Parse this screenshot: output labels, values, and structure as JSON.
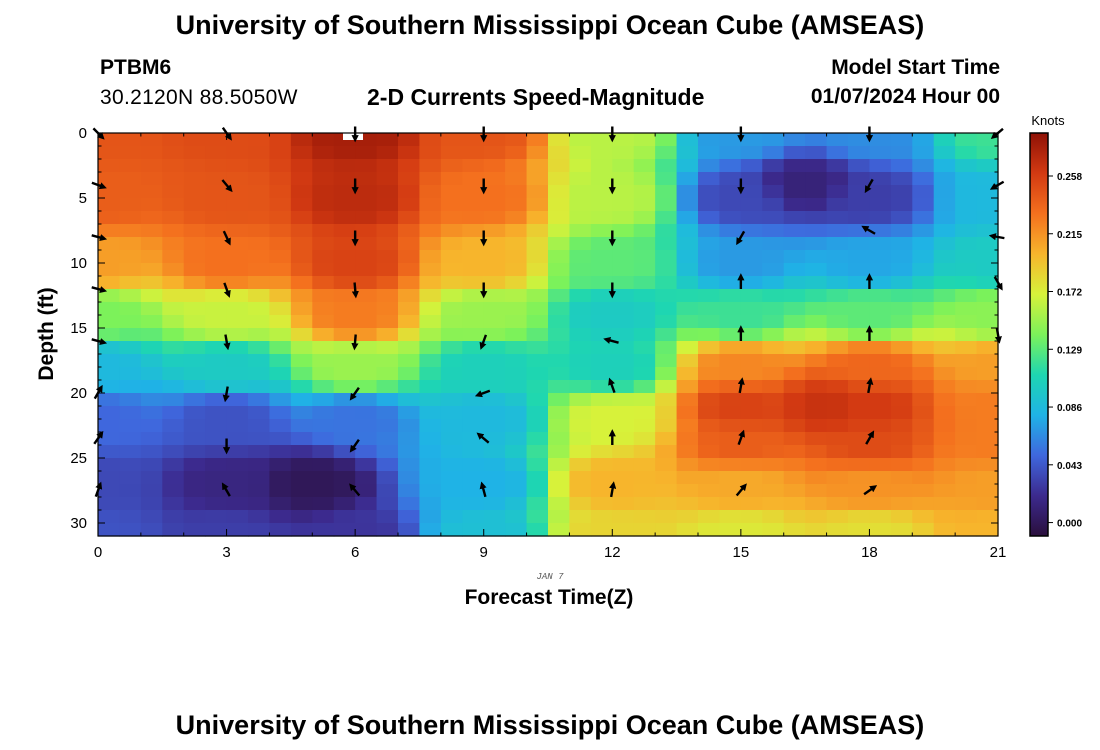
{
  "header": {
    "title": "University of Southern Mississippi Ocean Cube (AMSEAS)",
    "station": "PTBM6",
    "coordinates": "30.2120N  88.5050W",
    "subtitle": "2-D Currents Speed-Magnitude",
    "model_start_label": "Model Start Time",
    "model_start_value": "01/07/2024 Hour 00"
  },
  "footer": {
    "title": "University of Southern Mississippi Ocean Cube (AMSEAS)"
  },
  "chart_data": {
    "type": "heatmap",
    "title": "2-D Currents Speed-Magnitude",
    "xlabel": "Forecast Time(Z)",
    "ylabel": "Depth (ft)",
    "date_label": "JAN 7",
    "x_range": [
      0,
      21
    ],
    "y_range": [
      0,
      31
    ],
    "x_ticks": [
      0,
      3,
      6,
      9,
      12,
      15,
      18,
      21
    ],
    "y_ticks": [
      0,
      5,
      10,
      15,
      20,
      25,
      30
    ],
    "colorbar": {
      "label": "Knots",
      "min": -0.01,
      "max": 0.29,
      "ticks": [
        "0.000",
        "0.043",
        "0.086",
        "0.129",
        "0.172",
        "0.215",
        "0.258"
      ],
      "tick_values": [
        0.0,
        0.043,
        0.086,
        0.129,
        0.172,
        0.215,
        0.258
      ],
      "colors": [
        "#2a0f3c",
        "#3c2a8e",
        "#3f67dd",
        "#1fb3e6",
        "#1ed6b1",
        "#7cf25a",
        "#d7f23a",
        "#f7b52c",
        "#f4701e",
        "#d33a12",
        "#8f1106"
      ]
    },
    "anchors": [
      {
        "x": 0,
        "y": 0,
        "v": 0.245
      },
      {
        "x": 0,
        "y": 5,
        "v": 0.24
      },
      {
        "x": 0,
        "y": 10,
        "v": 0.21
      },
      {
        "x": 0,
        "y": 14,
        "v": 0.14
      },
      {
        "x": 0,
        "y": 18,
        "v": 0.085
      },
      {
        "x": 0,
        "y": 22,
        "v": 0.05
      },
      {
        "x": 0,
        "y": 27,
        "v": 0.035
      },
      {
        "x": 0,
        "y": 31,
        "v": 0.04
      },
      {
        "x": 3,
        "y": 0,
        "v": 0.25
      },
      {
        "x": 3,
        "y": 5,
        "v": 0.245
      },
      {
        "x": 3,
        "y": 10,
        "v": 0.23
      },
      {
        "x": 3,
        "y": 14,
        "v": 0.165
      },
      {
        "x": 3,
        "y": 18,
        "v": 0.1
      },
      {
        "x": 3,
        "y": 22,
        "v": 0.04
      },
      {
        "x": 3,
        "y": 27,
        "v": 0.015
      },
      {
        "x": 3,
        "y": 31,
        "v": 0.03
      },
      {
        "x": 5,
        "y": 27,
        "v": 0.0
      },
      {
        "x": 6,
        "y": 0,
        "v": 0.28
      },
      {
        "x": 6,
        "y": 5,
        "v": 0.27
      },
      {
        "x": 6,
        "y": 10,
        "v": 0.255
      },
      {
        "x": 6,
        "y": 14,
        "v": 0.225
      },
      {
        "x": 6,
        "y": 18,
        "v": 0.15
      },
      {
        "x": 6,
        "y": 22,
        "v": 0.055
      },
      {
        "x": 6,
        "y": 31,
        "v": 0.025
      },
      {
        "x": 9,
        "y": 0,
        "v": 0.245
      },
      {
        "x": 9,
        "y": 5,
        "v": 0.23
      },
      {
        "x": 9,
        "y": 10,
        "v": 0.2
      },
      {
        "x": 9,
        "y": 14,
        "v": 0.15
      },
      {
        "x": 9,
        "y": 18,
        "v": 0.105
      },
      {
        "x": 9,
        "y": 22,
        "v": 0.085
      },
      {
        "x": 9,
        "y": 27,
        "v": 0.08
      },
      {
        "x": 9,
        "y": 31,
        "v": 0.09
      },
      {
        "x": 12,
        "y": 0,
        "v": 0.16
      },
      {
        "x": 12,
        "y": 5,
        "v": 0.16
      },
      {
        "x": 12,
        "y": 10,
        "v": 0.13
      },
      {
        "x": 12,
        "y": 14,
        "v": 0.1
      },
      {
        "x": 12,
        "y": 18,
        "v": 0.105
      },
      {
        "x": 12,
        "y": 22,
        "v": 0.17
      },
      {
        "x": 12,
        "y": 27,
        "v": 0.2
      },
      {
        "x": 12,
        "y": 31,
        "v": 0.185
      },
      {
        "x": 15,
        "y": 0,
        "v": 0.07
      },
      {
        "x": 15,
        "y": 5,
        "v": 0.035
      },
      {
        "x": 15,
        "y": 10,
        "v": 0.07
      },
      {
        "x": 15,
        "y": 14,
        "v": 0.12
      },
      {
        "x": 15,
        "y": 18,
        "v": 0.22
      },
      {
        "x": 15,
        "y": 21,
        "v": 0.255
      },
      {
        "x": 15,
        "y": 24,
        "v": 0.24
      },
      {
        "x": 15,
        "y": 27,
        "v": 0.205
      },
      {
        "x": 15,
        "y": 31,
        "v": 0.175
      },
      {
        "x": 16.5,
        "y": 4,
        "v": 0.012
      },
      {
        "x": 17,
        "y": 21,
        "v": 0.265
      },
      {
        "x": 18,
        "y": 0,
        "v": 0.065
      },
      {
        "x": 18,
        "y": 5,
        "v": 0.03
      },
      {
        "x": 18,
        "y": 10,
        "v": 0.075
      },
      {
        "x": 18,
        "y": 14,
        "v": 0.13
      },
      {
        "x": 18,
        "y": 18,
        "v": 0.235
      },
      {
        "x": 18,
        "y": 21,
        "v": 0.26
      },
      {
        "x": 18,
        "y": 24,
        "v": 0.25
      },
      {
        "x": 18,
        "y": 27,
        "v": 0.215
      },
      {
        "x": 18,
        "y": 31,
        "v": 0.18
      },
      {
        "x": 21,
        "y": 0,
        "v": 0.12
      },
      {
        "x": 21,
        "y": 5,
        "v": 0.085
      },
      {
        "x": 21,
        "y": 10,
        "v": 0.1
      },
      {
        "x": 21,
        "y": 14,
        "v": 0.145
      },
      {
        "x": 21,
        "y": 18,
        "v": 0.21
      },
      {
        "x": 21,
        "y": 21,
        "v": 0.225
      },
      {
        "x": 21,
        "y": 24,
        "v": 0.225
      },
      {
        "x": 21,
        "y": 27,
        "v": 0.21
      },
      {
        "x": 21,
        "y": 31,
        "v": 0.2
      }
    ],
    "vectors": [
      {
        "x": 0,
        "y": 0,
        "dir": 135
      },
      {
        "x": 0,
        "y": 4,
        "dir": 110
      },
      {
        "x": 0,
        "y": 8,
        "dir": 105
      },
      {
        "x": 0,
        "y": 12,
        "dir": 105
      },
      {
        "x": 0,
        "y": 16,
        "dir": 105
      },
      {
        "x": 0,
        "y": 20,
        "dir": 30
      },
      {
        "x": 0,
        "y": 23.5,
        "dir": 35
      },
      {
        "x": 0,
        "y": 27.5,
        "dir": 20
      },
      {
        "x": 3,
        "y": 0,
        "dir": 145
      },
      {
        "x": 3,
        "y": 4,
        "dir": 140
      },
      {
        "x": 3,
        "y": 8,
        "dir": 155
      },
      {
        "x": 3,
        "y": 12,
        "dir": 160
      },
      {
        "x": 3,
        "y": 16,
        "dir": 170
      },
      {
        "x": 3,
        "y": 20,
        "dir": 190
      },
      {
        "x": 3,
        "y": 24,
        "dir": 180
      },
      {
        "x": 3,
        "y": 27.5,
        "dir": 330
      },
      {
        "x": 6,
        "y": 0,
        "dir": 180
      },
      {
        "x": 6,
        "y": 4,
        "dir": 180
      },
      {
        "x": 6,
        "y": 8,
        "dir": 180
      },
      {
        "x": 6,
        "y": 12,
        "dir": 175
      },
      {
        "x": 6,
        "y": 16,
        "dir": 185
      },
      {
        "x": 6,
        "y": 20,
        "dir": 215
      },
      {
        "x": 6,
        "y": 24,
        "dir": 215
      },
      {
        "x": 6,
        "y": 27.5,
        "dir": 320
      },
      {
        "x": 9,
        "y": 0,
        "dir": 180
      },
      {
        "x": 9,
        "y": 4,
        "dir": 180
      },
      {
        "x": 9,
        "y": 8,
        "dir": 180
      },
      {
        "x": 9,
        "y": 12,
        "dir": 180
      },
      {
        "x": 9,
        "y": 16,
        "dir": 200
      },
      {
        "x": 9,
        "y": 20,
        "dir": 250
      },
      {
        "x": 9,
        "y": 23.5,
        "dir": 310
      },
      {
        "x": 9,
        "y": 27.5,
        "dir": 345
      },
      {
        "x": 12,
        "y": 0,
        "dir": 180
      },
      {
        "x": 12,
        "y": 4,
        "dir": 180
      },
      {
        "x": 12,
        "y": 8,
        "dir": 180
      },
      {
        "x": 12,
        "y": 12,
        "dir": 180
      },
      {
        "x": 12,
        "y": 16,
        "dir": 285
      },
      {
        "x": 12,
        "y": 19.5,
        "dir": 340
      },
      {
        "x": 12,
        "y": 23.5,
        "dir": 0
      },
      {
        "x": 12,
        "y": 27.5,
        "dir": 10
      },
      {
        "x": 15,
        "y": 0,
        "dir": 180
      },
      {
        "x": 15,
        "y": 4,
        "dir": 180
      },
      {
        "x": 15,
        "y": 8,
        "dir": 210
      },
      {
        "x": 15,
        "y": 11.5,
        "dir": 0
      },
      {
        "x": 15,
        "y": 15.5,
        "dir": 0
      },
      {
        "x": 15,
        "y": 19.5,
        "dir": 10
      },
      {
        "x": 15,
        "y": 23.5,
        "dir": 20
      },
      {
        "x": 15,
        "y": 27.5,
        "dir": 40
      },
      {
        "x": 18,
        "y": 0,
        "dir": 180
      },
      {
        "x": 18,
        "y": 4,
        "dir": 210
      },
      {
        "x": 18,
        "y": 7.5,
        "dir": 300
      },
      {
        "x": 18,
        "y": 11.5,
        "dir": 0
      },
      {
        "x": 18,
        "y": 15.5,
        "dir": 0
      },
      {
        "x": 18,
        "y": 19.5,
        "dir": 10
      },
      {
        "x": 18,
        "y": 23.5,
        "dir": 30
      },
      {
        "x": 18,
        "y": 27.5,
        "dir": 55
      },
      {
        "x": 21,
        "y": 0,
        "dir": 230
      },
      {
        "x": 21,
        "y": 4,
        "dir": 240
      },
      {
        "x": 21,
        "y": 8,
        "dir": 280
      },
      {
        "x": 21,
        "y": 11.5,
        "dir": 150
      },
      {
        "x": 21,
        "y": 15.5,
        "dir": 170
      }
    ]
  }
}
